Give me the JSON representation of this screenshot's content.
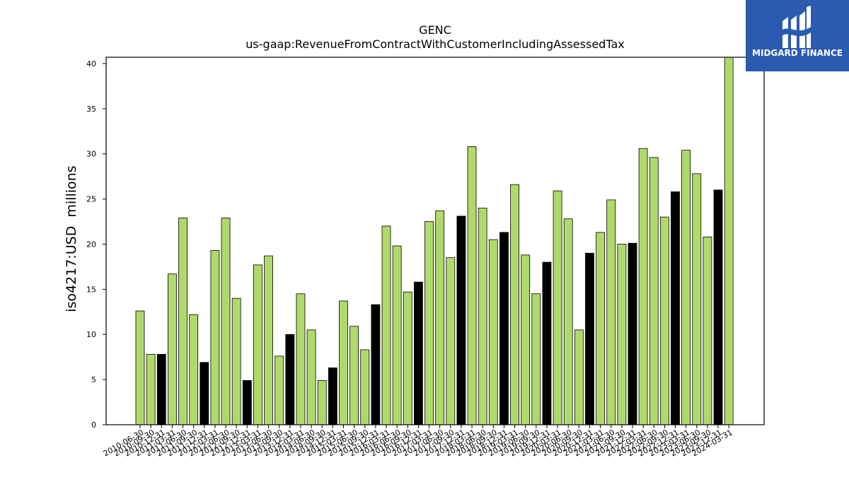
{
  "brand": {
    "name": "MIDGARD FINANCE",
    "bg_color": "#2b5bb0",
    "icon": "midgard-logo-icon"
  },
  "chart_data": {
    "type": "bar",
    "title": "GENC",
    "subtitle": "us-gaap:RevenueFromContractWithCustomerIncludingAssessedTax",
    "ylabel": "iso4217:USD  millions",
    "xlabel": "",
    "ylim": [
      0,
      40.7
    ],
    "yticks": [
      0,
      5,
      10,
      15,
      20,
      25,
      30,
      35,
      40
    ],
    "grid": false,
    "colors": {
      "default": "#b0d96c",
      "highlight": "#000000",
      "edge": "#000000"
    },
    "categories": [
      "2010-06-30",
      "2010-09-30",
      "2010-12-31",
      "2011-03-31",
      "2011-06-30",
      "2011-09-30",
      "2011-12-31",
      "2012-03-31",
      "2012-06-30",
      "2012-09-30",
      "2012-12-31",
      "2013-03-31",
      "2013-06-30",
      "2013-09-30",
      "2013-12-31",
      "2014-03-31",
      "2014-06-30",
      "2014-09-30",
      "2014-12-31",
      "2015-03-31",
      "2015-06-30",
      "2015-09-30",
      "2015-12-31",
      "2016-03-31",
      "2016-06-30",
      "2016-09-30",
      "2016-12-31",
      "2017-03-31",
      "2017-06-30",
      "2017-09-30",
      "2017-12-31",
      "2018-03-31",
      "2018-06-30",
      "2018-09-30",
      "2018-12-31",
      "2019-03-31",
      "2019-06-30",
      "2019-09-30",
      "2019-12-31",
      "2020-03-31",
      "2020-06-30",
      "2020-09-30",
      "2020-12-31",
      "2021-03-31",
      "2021-06-30",
      "2021-09-30",
      "2021-12-31",
      "2022-03-31",
      "2022-06-30",
      "2022-09-30",
      "2022-12-31",
      "2023-03-31",
      "2023-06-30",
      "2023-09-30",
      "2023-12-31",
      "2024-03-31"
    ],
    "values": [
      12.6,
      7.8,
      7.8,
      16.7,
      22.9,
      12.2,
      6.9,
      19.3,
      22.9,
      14.0,
      4.9,
      17.7,
      18.7,
      7.6,
      10.0,
      14.5,
      10.5,
      4.9,
      6.3,
      13.7,
      10.9,
      8.3,
      13.3,
      22.0,
      19.8,
      14.7,
      15.8,
      22.5,
      23.7,
      18.5,
      23.1,
      30.8,
      24.0,
      20.5,
      21.3,
      26.6,
      18.8,
      14.5,
      18.0,
      25.9,
      22.8,
      10.5,
      19.0,
      21.3,
      24.9,
      20.0,
      20.1,
      30.6,
      29.6,
      23.0,
      25.8,
      30.4,
      27.8,
      20.8,
      26.0,
      40.7
    ],
    "highlight": [
      false,
      false,
      true,
      false,
      false,
      false,
      true,
      false,
      false,
      false,
      true,
      false,
      false,
      false,
      true,
      false,
      false,
      false,
      true,
      false,
      false,
      false,
      true,
      false,
      false,
      false,
      true,
      false,
      false,
      false,
      true,
      false,
      false,
      false,
      true,
      false,
      false,
      false,
      true,
      false,
      false,
      false,
      true,
      false,
      false,
      false,
      true,
      false,
      false,
      false,
      true,
      false,
      false,
      false,
      true,
      false
    ]
  }
}
